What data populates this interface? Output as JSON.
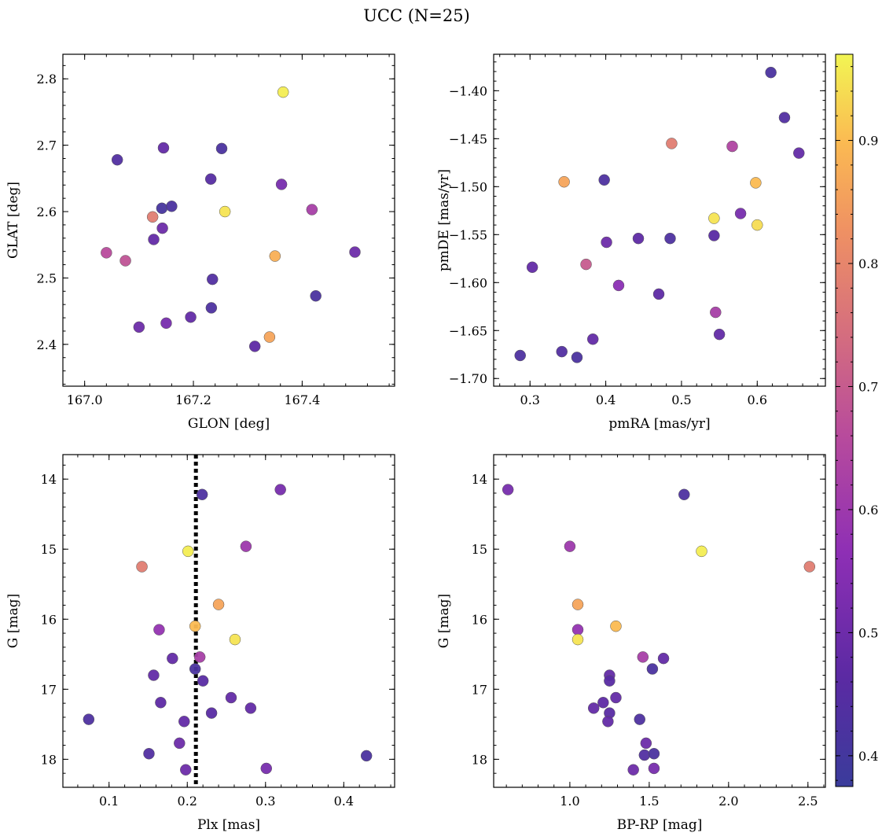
{
  "figure": {
    "title": "UCC (N=25)"
  },
  "colorbar": {
    "colormap": "plasma",
    "range": [
      0.375,
      0.97
    ],
    "ticks": [
      0.4,
      0.5,
      0.6,
      0.7,
      0.8,
      0.9
    ]
  },
  "chart_data": [
    {
      "type": "scatter",
      "id": "glon-glat",
      "xlabel": "GLON [deg]",
      "ylabel": "GLAT [deg]",
      "xlim": [
        166.96,
        167.57
      ],
      "ylim": [
        2.337,
        2.837
      ],
      "xticks": [
        167.0,
        167.2,
        167.4
      ],
      "xtick_labels": [
        "167.0",
        "167.2",
        "167.4"
      ],
      "yticks": [
        2.4,
        2.5,
        2.6,
        2.7,
        2.8
      ],
      "ytick_labels": [
        "2.4",
        "2.5",
        "2.6",
        "2.7",
        "2.8"
      ],
      "inverted_y": false,
      "points": [
        {
          "x": 167.365,
          "y": 2.78,
          "c": 0.96
        },
        {
          "x": 167.06,
          "y": 2.678,
          "c": 0.44
        },
        {
          "x": 167.145,
          "y": 2.696,
          "c": 0.48
        },
        {
          "x": 167.252,
          "y": 2.695,
          "c": 0.42
        },
        {
          "x": 167.232,
          "y": 2.649,
          "c": 0.45
        },
        {
          "x": 167.362,
          "y": 2.641,
          "c": 0.52
        },
        {
          "x": 167.142,
          "y": 2.605,
          "c": 0.41
        },
        {
          "x": 167.16,
          "y": 2.608,
          "c": 0.42
        },
        {
          "x": 167.418,
          "y": 2.603,
          "c": 0.62
        },
        {
          "x": 167.258,
          "y": 2.6,
          "c": 0.95
        },
        {
          "x": 167.125,
          "y": 2.592,
          "c": 0.78
        },
        {
          "x": 167.143,
          "y": 2.575,
          "c": 0.5
        },
        {
          "x": 167.127,
          "y": 2.558,
          "c": 0.48
        },
        {
          "x": 167.04,
          "y": 2.538,
          "c": 0.66
        },
        {
          "x": 167.497,
          "y": 2.539,
          "c": 0.5
        },
        {
          "x": 167.35,
          "y": 2.533,
          "c": 0.88
        },
        {
          "x": 167.075,
          "y": 2.526,
          "c": 0.68
        },
        {
          "x": 167.235,
          "y": 2.498,
          "c": 0.44
        },
        {
          "x": 167.425,
          "y": 2.473,
          "c": 0.42
        },
        {
          "x": 167.233,
          "y": 2.455,
          "c": 0.43
        },
        {
          "x": 167.195,
          "y": 2.441,
          "c": 0.48
        },
        {
          "x": 167.15,
          "y": 2.432,
          "c": 0.52
        },
        {
          "x": 167.1,
          "y": 2.426,
          "c": 0.5
        },
        {
          "x": 167.34,
          "y": 2.411,
          "c": 0.86
        },
        {
          "x": 167.313,
          "y": 2.397,
          "c": 0.47
        }
      ]
    },
    {
      "type": "scatter",
      "id": "pmra-pmde",
      "xlabel": "pmRA [mas/yr]",
      "ylabel": "pmDE [mas/yr]",
      "xlim": [
        0.252,
        0.69
      ],
      "ylim": [
        -1.708,
        -1.362
      ],
      "xticks": [
        0.3,
        0.4,
        0.5,
        0.6
      ],
      "xtick_labels": [
        "0.3",
        "0.4",
        "0.5",
        "0.6"
      ],
      "yticks": [
        -1.7,
        -1.65,
        -1.6,
        -1.55,
        -1.5,
        -1.45,
        -1.4
      ],
      "ytick_labels": [
        "−1.70",
        "−1.65",
        "−1.60",
        "−1.55",
        "−1.50",
        "−1.45",
        "−1.40"
      ],
      "inverted_y": false,
      "points": [
        {
          "x": 0.618,
          "y": -1.381,
          "c": 0.42
        },
        {
          "x": 0.636,
          "y": -1.428,
          "c": 0.44
        },
        {
          "x": 0.487,
          "y": -1.455,
          "c": 0.78
        },
        {
          "x": 0.567,
          "y": -1.458,
          "c": 0.64
        },
        {
          "x": 0.655,
          "y": -1.465,
          "c": 0.48
        },
        {
          "x": 0.345,
          "y": -1.495,
          "c": 0.86
        },
        {
          "x": 0.398,
          "y": -1.493,
          "c": 0.43
        },
        {
          "x": 0.598,
          "y": -1.496,
          "c": 0.9
        },
        {
          "x": 0.578,
          "y": -1.528,
          "c": 0.52
        },
        {
          "x": 0.543,
          "y": -1.533,
          "c": 0.95
        },
        {
          "x": 0.6,
          "y": -1.54,
          "c": 0.94
        },
        {
          "x": 0.543,
          "y": -1.551,
          "c": 0.46
        },
        {
          "x": 0.443,
          "y": -1.554,
          "c": 0.47
        },
        {
          "x": 0.485,
          "y": -1.554,
          "c": 0.43
        },
        {
          "x": 0.401,
          "y": -1.558,
          "c": 0.5
        },
        {
          "x": 0.374,
          "y": -1.581,
          "c": 0.7
        },
        {
          "x": 0.303,
          "y": -1.584,
          "c": 0.48
        },
        {
          "x": 0.417,
          "y": -1.603,
          "c": 0.56
        },
        {
          "x": 0.47,
          "y": -1.612,
          "c": 0.47
        },
        {
          "x": 0.545,
          "y": -1.631,
          "c": 0.62
        },
        {
          "x": 0.55,
          "y": -1.654,
          "c": 0.48
        },
        {
          "x": 0.383,
          "y": -1.659,
          "c": 0.48
        },
        {
          "x": 0.342,
          "y": -1.672,
          "c": 0.44
        },
        {
          "x": 0.287,
          "y": -1.676,
          "c": 0.43
        },
        {
          "x": 0.362,
          "y": -1.678,
          "c": 0.42
        }
      ]
    },
    {
      "type": "scatter",
      "id": "plx-g",
      "xlabel": "Plx [mas]",
      "ylabel": "G [mag]",
      "xlim": [
        0.041,
        0.465
      ],
      "ylim": [
        18.4,
        13.65
      ],
      "xticks": [
        0.1,
        0.2,
        0.3,
        0.4
      ],
      "xtick_labels": [
        "0.1",
        "0.2",
        "0.3",
        "0.4"
      ],
      "yticks": [
        14,
        15,
        16,
        17,
        18
      ],
      "ytick_labels": [
        "14",
        "15",
        "16",
        "17",
        "18"
      ],
      "inverted_y": true,
      "vline": {
        "x": 0.211,
        "style": "dotted"
      },
      "points": [
        {
          "x": 0.219,
          "y": 14.22,
          "c": 0.43
        },
        {
          "x": 0.319,
          "y": 14.15,
          "c": 0.52
        },
        {
          "x": 0.275,
          "y": 14.96,
          "c": 0.6
        },
        {
          "x": 0.201,
          "y": 15.03,
          "c": 0.96
        },
        {
          "x": 0.142,
          "y": 15.25,
          "c": 0.78
        },
        {
          "x": 0.24,
          "y": 15.79,
          "c": 0.86
        },
        {
          "x": 0.21,
          "y": 16.1,
          "c": 0.9
        },
        {
          "x": 0.164,
          "y": 16.15,
          "c": 0.58
        },
        {
          "x": 0.261,
          "y": 16.29,
          "c": 0.95
        },
        {
          "x": 0.216,
          "y": 16.54,
          "c": 0.62
        },
        {
          "x": 0.181,
          "y": 16.56,
          "c": 0.48
        },
        {
          "x": 0.21,
          "y": 16.71,
          "c": 0.42
        },
        {
          "x": 0.157,
          "y": 16.8,
          "c": 0.48
        },
        {
          "x": 0.22,
          "y": 16.88,
          "c": 0.46
        },
        {
          "x": 0.256,
          "y": 17.12,
          "c": 0.48
        },
        {
          "x": 0.166,
          "y": 17.19,
          "c": 0.47
        },
        {
          "x": 0.281,
          "y": 17.27,
          "c": 0.48
        },
        {
          "x": 0.231,
          "y": 17.34,
          "c": 0.46
        },
        {
          "x": 0.074,
          "y": 17.43,
          "c": 0.43
        },
        {
          "x": 0.196,
          "y": 17.46,
          "c": 0.48
        },
        {
          "x": 0.19,
          "y": 17.77,
          "c": 0.5
        },
        {
          "x": 0.151,
          "y": 17.92,
          "c": 0.44
        },
        {
          "x": 0.429,
          "y": 17.95,
          "c": 0.42
        },
        {
          "x": 0.301,
          "y": 18.13,
          "c": 0.52
        },
        {
          "x": 0.198,
          "y": 18.15,
          "c": 0.5
        }
      ]
    },
    {
      "type": "scatter",
      "id": "bprp-g",
      "xlabel": "BP-RP [mag]",
      "ylabel": "G [mag]",
      "xlim": [
        0.52,
        2.61
      ],
      "ylim": [
        18.4,
        13.65
      ],
      "xticks": [
        1.0,
        1.5,
        2.0,
        2.5
      ],
      "xtick_labels": [
        "1.0",
        "1.5",
        "2.0",
        "2.5"
      ],
      "yticks": [
        14,
        15,
        16,
        17,
        18
      ],
      "ytick_labels": [
        "14",
        "15",
        "16",
        "17",
        "18"
      ],
      "inverted_y": true,
      "points": [
        {
          "x": 0.61,
          "y": 14.15,
          "c": 0.52
        },
        {
          "x": 1.72,
          "y": 14.22,
          "c": 0.43
        },
        {
          "x": 1.0,
          "y": 14.96,
          "c": 0.6
        },
        {
          "x": 1.83,
          "y": 15.03,
          "c": 0.96
        },
        {
          "x": 2.51,
          "y": 15.25,
          "c": 0.78
        },
        {
          "x": 1.05,
          "y": 15.79,
          "c": 0.86
        },
        {
          "x": 1.05,
          "y": 16.15,
          "c": 0.58
        },
        {
          "x": 1.29,
          "y": 16.1,
          "c": 0.9
        },
        {
          "x": 1.05,
          "y": 16.29,
          "c": 0.95
        },
        {
          "x": 1.46,
          "y": 16.54,
          "c": 0.62
        },
        {
          "x": 1.59,
          "y": 16.56,
          "c": 0.48
        },
        {
          "x": 1.52,
          "y": 16.71,
          "c": 0.42
        },
        {
          "x": 1.25,
          "y": 16.8,
          "c": 0.48
        },
        {
          "x": 1.25,
          "y": 16.88,
          "c": 0.46
        },
        {
          "x": 1.29,
          "y": 17.12,
          "c": 0.48
        },
        {
          "x": 1.21,
          "y": 17.19,
          "c": 0.47
        },
        {
          "x": 1.15,
          "y": 17.27,
          "c": 0.48
        },
        {
          "x": 1.25,
          "y": 17.34,
          "c": 0.46
        },
        {
          "x": 1.44,
          "y": 17.43,
          "c": 0.43
        },
        {
          "x": 1.24,
          "y": 17.46,
          "c": 0.48
        },
        {
          "x": 1.48,
          "y": 17.77,
          "c": 0.5
        },
        {
          "x": 1.47,
          "y": 17.94,
          "c": 0.44
        },
        {
          "x": 1.53,
          "y": 17.92,
          "c": 0.42
        },
        {
          "x": 1.4,
          "y": 18.15,
          "c": 0.5
        },
        {
          "x": 1.53,
          "y": 18.13,
          "c": 0.52
        }
      ]
    }
  ]
}
